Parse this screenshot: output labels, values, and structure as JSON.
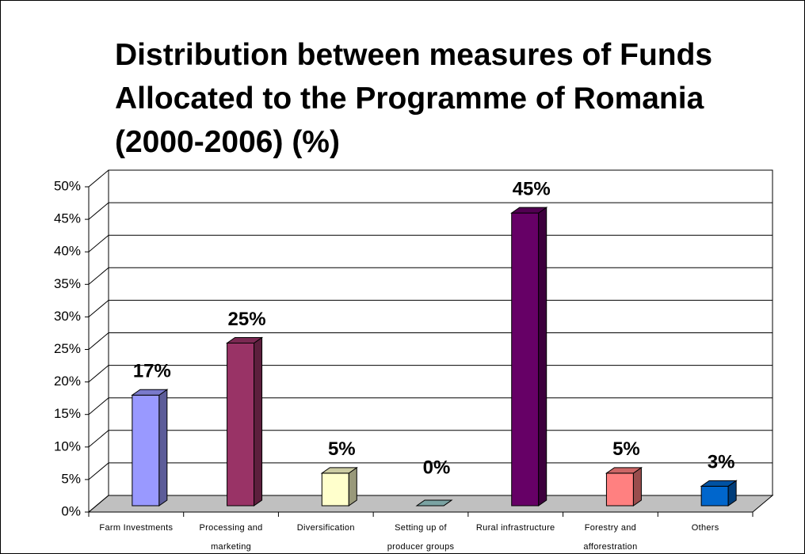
{
  "chart_data": {
    "type": "bar3d",
    "title": "Distribution between measures of Funds Allocated to the Programme of Romania (2000-2006) (%)",
    "categories": [
      "Farm Investments",
      "Processing and marketing",
      "Diversification",
      "Setting up of producer groups",
      "Rural infrastructure",
      "Forestry and afforestration",
      "Others"
    ],
    "values": [
      17,
      25,
      5,
      0,
      45,
      5,
      3
    ],
    "value_labels": [
      "17%",
      "25%",
      "5%",
      "0%",
      "45%",
      "5%",
      "3%"
    ],
    "colors": [
      "#9999ff",
      "#993366",
      "#ffffcc",
      "#99cccc",
      "#660066",
      "#ff8080",
      "#0066cc"
    ],
    "ylim": [
      0,
      50
    ],
    "yticks": [
      {
        "value": 0,
        "label": "0%"
      },
      {
        "value": 5,
        "label": "5%"
      },
      {
        "value": 10,
        "label": "10%"
      },
      {
        "value": 15,
        "label": "15%"
      },
      {
        "value": 20,
        "label": "20%"
      },
      {
        "value": 25,
        "label": "25%"
      },
      {
        "value": 30,
        "label": "30%"
      },
      {
        "value": 35,
        "label": "35%"
      },
      {
        "value": 40,
        "label": "40%"
      },
      {
        "value": 45,
        "label": "45%"
      },
      {
        "value": 50,
        "label": "50%"
      }
    ],
    "grid": true
  }
}
